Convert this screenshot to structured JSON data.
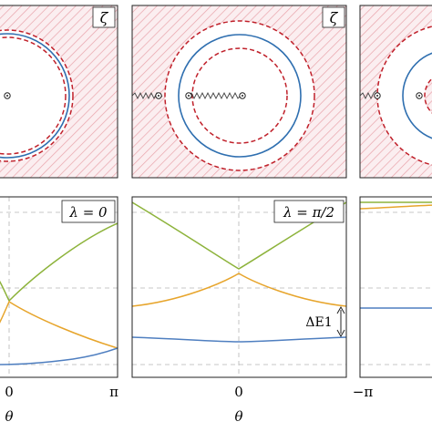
{
  "figure": {
    "top_panels": [
      {
        "label": "ζ"
      },
      {
        "label": "ζ"
      },
      {
        "label": ""
      }
    ],
    "colors": {
      "hatch": "#e9a3aa",
      "hatch_bg": "#fbeef0",
      "blue": "#2f6fb0",
      "red_dashed": "#c0202a",
      "green": "#8db33b",
      "orange": "#e7a52c",
      "band_blue": "#4f7fc0",
      "grid": "#b5b5b5"
    },
    "bottom_panels": [
      {
        "legend": "λ = 0",
        "xticks": [
          "0",
          "π"
        ],
        "xlabel": "θ"
      },
      {
        "legend": "λ = π/2",
        "xticks": [
          "0"
        ],
        "xlabel": "θ",
        "annotation": "ΔE1"
      },
      {
        "legend": "",
        "xticks": [
          "−π"
        ],
        "xlabel": ""
      }
    ]
  },
  "chart_data": [
    {
      "type": "line",
      "title": "λ = 0",
      "xlabel": "θ",
      "ylabel": "",
      "xlim": [
        -0.37,
        1.0
      ],
      "x_units": "π",
      "ylim": [
        0,
        1
      ],
      "grid": true,
      "series": [
        {
          "values_x": [
            -0.37,
            -0.25,
            -0.1,
            0.0,
            0.1,
            0.25,
            0.4,
            0.55,
            0.7,
            0.85,
            1.0
          ],
          "values_y": [
            0.69,
            0.63,
            0.57,
            0.53,
            0.57,
            0.63,
            0.69,
            0.75,
            0.81,
            0.86,
            0.92
          ]
        },
        {
          "values_x": [
            -0.37,
            -0.25,
            -0.1,
            0.0,
            0.1,
            0.25,
            0.4,
            0.55,
            0.7,
            0.85,
            1.0
          ],
          "values_y": [
            0.32,
            0.38,
            0.46,
            0.52,
            0.46,
            0.39,
            0.33,
            0.27,
            0.21,
            0.16,
            0.11
          ]
        },
        {
          "values_x": [
            -0.37,
            -0.25,
            -0.1,
            0.0,
            0.1,
            0.25,
            0.4,
            0.55,
            0.7,
            0.85,
            1.0
          ],
          "values_y": [
            0.0,
            0.005,
            0.01,
            0.012,
            0.02,
            0.035,
            0.05,
            0.06,
            0.07,
            0.09,
            0.11
          ]
        }
      ]
    },
    {
      "type": "line",
      "title": "λ = π/2",
      "xlabel": "θ",
      "ylabel": "",
      "xlim": [
        -1.0,
        1.0
      ],
      "x_units": "π",
      "ylim": [
        0,
        1
      ],
      "grid": true,
      "series": [
        {
          "values_x": [
            -1.0,
            -0.75,
            -0.5,
            -0.25,
            -0.1,
            0.0,
            0.1,
            0.25,
            0.5,
            0.75,
            1.0
          ],
          "values_y": [
            1.0,
            0.9,
            0.78,
            0.67,
            0.6,
            0.57,
            0.6,
            0.67,
            0.78,
            0.9,
            1.0
          ]
        },
        {
          "values_x": [
            -1.0,
            -0.75,
            -0.5,
            -0.25,
            -0.1,
            0.0,
            0.1,
            0.25,
            0.5,
            0.75,
            1.0
          ],
          "values_y": [
            0.34,
            0.39,
            0.45,
            0.5,
            0.53,
            0.55,
            0.53,
            0.5,
            0.45,
            0.39,
            0.34
          ]
        },
        {
          "values_x": [
            -1.0,
            -0.75,
            -0.5,
            -0.25,
            0.0,
            0.25,
            0.5,
            0.75,
            1.0
          ],
          "values_y": [
            0.16,
            0.15,
            0.14,
            0.13,
            0.13,
            0.13,
            0.14,
            0.15,
            0.16
          ]
        }
      ]
    },
    {
      "type": "line",
      "title": "",
      "xlabel": "",
      "ylabel": "",
      "xlim": [
        -1.0,
        -0.7
      ],
      "x_units": "π",
      "ylim": [
        0,
        1
      ],
      "grid": true,
      "series": [
        {
          "values_x": [
            -1.0,
            -0.7
          ],
          "values_y": [
            1.0,
            1.0
          ]
        },
        {
          "values_x": [
            -1.0,
            -0.7
          ],
          "values_y": [
            0.94,
            0.96
          ]
        },
        {
          "values_x": [
            -1.0,
            -0.7
          ],
          "values_y": [
            0.34,
            0.34
          ]
        }
      ]
    }
  ]
}
